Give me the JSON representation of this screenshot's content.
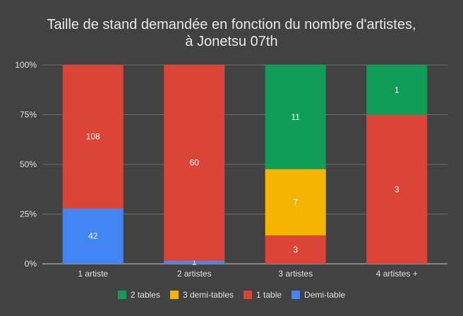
{
  "chart_data": {
    "type": "bar",
    "stacked": "percent",
    "title_lines": [
      "Taille de stand demandée en fonction du nombre d'artistes,",
      "à Jonetsu 07th"
    ],
    "categories": [
      "1 artiste",
      "2 artistes",
      "3 artistes",
      "4 artistes +"
    ],
    "series": [
      {
        "name": "Demi-table",
        "color": "#4285f4",
        "values": [
          42,
          1,
          0,
          0
        ]
      },
      {
        "name": "1 table",
        "color": "#db4437",
        "values": [
          108,
          60,
          3,
          3
        ]
      },
      {
        "name": "3 demi-tables",
        "color": "#f4b400",
        "values": [
          0,
          0,
          7,
          0
        ]
      },
      {
        "name": "2 tables",
        "color": "#0f9d58",
        "values": [
          0,
          0,
          11,
          1
        ]
      }
    ],
    "legend_order": [
      "2 tables",
      "3 demi-tables",
      "1 table",
      "Demi-table"
    ],
    "y_ticks": [
      "0%",
      "25%",
      "50%",
      "75%",
      "100%"
    ],
    "ylim": [
      0,
      100
    ],
    "grid": true,
    "legend_position": "bottom"
  }
}
